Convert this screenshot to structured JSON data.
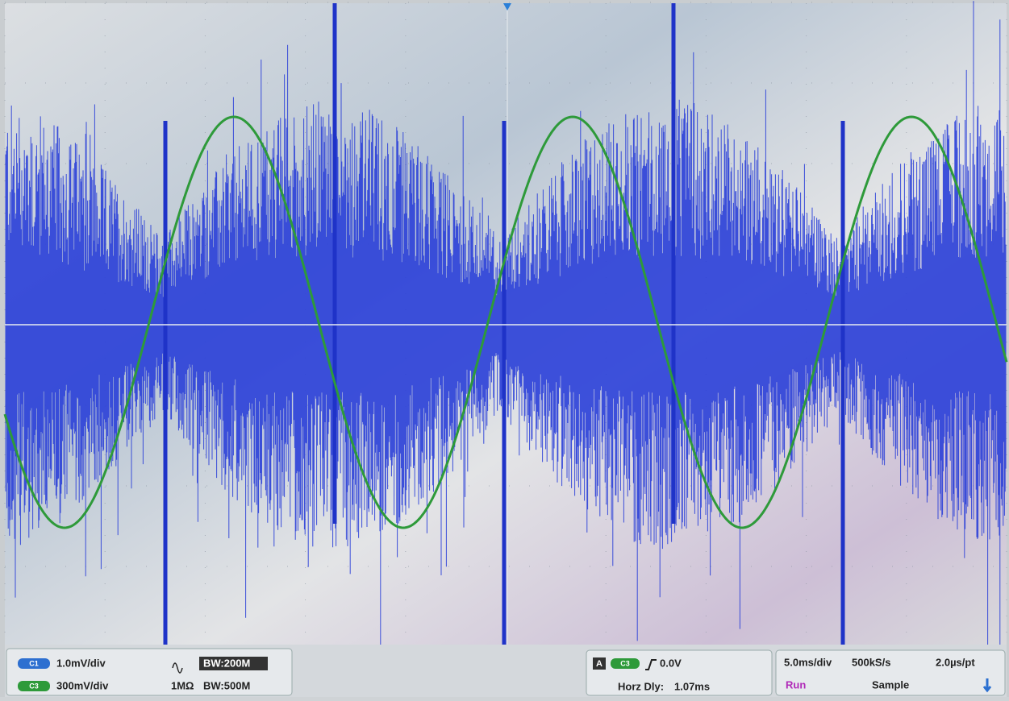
{
  "channels": [
    {
      "badge": "C1",
      "scale": "1.0mV/div"
    },
    {
      "badge": "C3",
      "scale": "300mV/div"
    }
  ],
  "input": {
    "coupling_bandwidth": "BW:200M",
    "impedance": "1MΩ",
    "bandwidth": "BW:500M"
  },
  "trigger": {
    "mode": "A",
    "source": "C3",
    "level": "0.0V",
    "delay_label": "Horz Dly:",
    "delay": "1.07ms"
  },
  "timebase": {
    "scale": "5.0ms/div",
    "sample_rate": "500kS/s",
    "resolution": "2.0µs/pt",
    "state": "Run",
    "acquisition": "Sample"
  }
}
